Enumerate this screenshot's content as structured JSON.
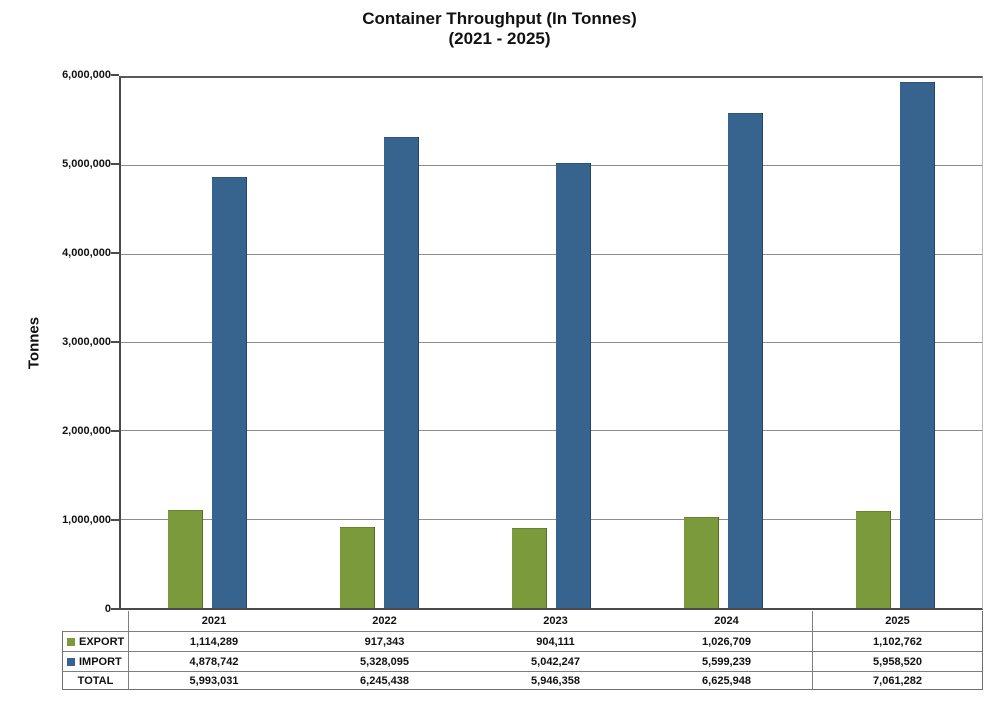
{
  "title": {
    "line1": "Container Throughput (In Tonnes)",
    "line2": "(2021 - 2025)"
  },
  "chart_data": {
    "type": "bar",
    "title": "Container Throughput (In Tonnes)",
    "subtitle": "(2021 - 2025)",
    "ylabel": "Tonnes",
    "xlabel": "",
    "ylim": [
      0,
      6000000
    ],
    "y_tick_step": 1000000,
    "y_tick_labels": [
      "0",
      "1,000,000",
      "2,000,000",
      "3,000,000",
      "4,000,000",
      "5,000,000",
      "6,000,000"
    ],
    "grid": true,
    "legend_position": "data-table-left",
    "categories": [
      "2021",
      "2022",
      "2023",
      "2024",
      "2025"
    ],
    "series": [
      {
        "name": "EXPORT",
        "color": "#7A9A3C",
        "values": [
          1114289,
          917343,
          904111,
          1026709,
          1102762
        ]
      },
      {
        "name": "IMPORT",
        "color": "#36648E",
        "values": [
          4878742,
          5328095,
          5042247,
          5599239,
          5958520
        ]
      }
    ],
    "total_row": {
      "name": "TOTAL",
      "values": [
        5993031,
        6245438,
        5946358,
        6625948,
        7061282
      ]
    }
  },
  "colors": {
    "export_bar": "#7A9A3C",
    "import_bar": "#36648E",
    "gridline": "#8C8C8C",
    "axis": "#4A4A4A",
    "table_border": "#7F7F7F"
  }
}
